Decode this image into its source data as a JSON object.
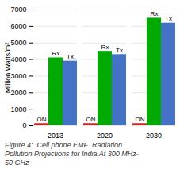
{
  "chart_data": {
    "type": "bar",
    "categories": [
      "2013",
      "2020",
      "2030"
    ],
    "series": [
      {
        "name": "ON",
        "color": "#cc2222",
        "values": [
          130,
          130,
          130
        ]
      },
      {
        "name": "Rx",
        "color": "#00aa00",
        "values": [
          4100,
          4500,
          6500
        ]
      },
      {
        "name": "Tx",
        "color": "#4472c4",
        "values": [
          3900,
          4300,
          6200
        ]
      }
    ],
    "ylabel": "Million Watts/m²",
    "ylim": [
      0,
      7000
    ],
    "yticks": [
      0,
      1000,
      2000,
      3000,
      4000,
      5000,
      6000,
      7000
    ],
    "grid": true,
    "caption": [
      "Figure 4:  Cell phone EMF  Radiation",
      "Pollution Projections for India At 300 MHz-",
      "50 GHz"
    ]
  }
}
